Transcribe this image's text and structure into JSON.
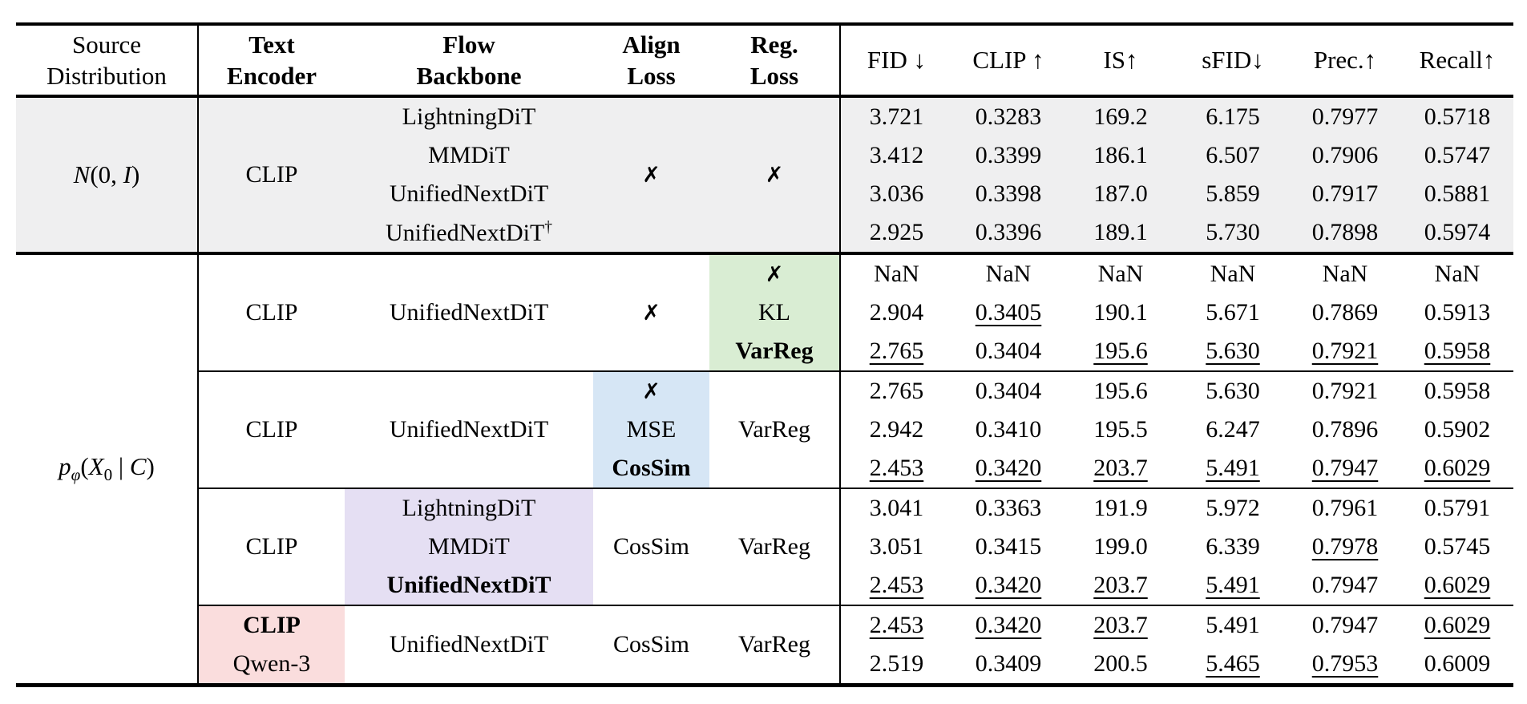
{
  "colors": {
    "section1_bg": "#efeff0",
    "green": "#d9edd3",
    "blue": "#d6e6f5",
    "purple": "#e5dff3",
    "pink": "#fadddd",
    "rule": "#000000"
  },
  "header": {
    "config_columns": [
      {
        "lines": [
          "Source",
          "Distribution"
        ],
        "bold": false
      },
      {
        "lines": [
          "Text",
          "Encoder"
        ],
        "bold": true
      },
      {
        "lines": [
          "Flow",
          "Backbone"
        ],
        "bold": true
      },
      {
        "lines": [
          "Align",
          "Loss"
        ],
        "bold": true
      },
      {
        "lines": [
          "Reg.",
          "Loss"
        ],
        "bold": true
      }
    ],
    "metric_columns": [
      "FID ↓",
      "CLIP ↑",
      "IS↑",
      "sFID↓",
      "Prec.↑",
      "Recall↑"
    ]
  },
  "sections": [
    {
      "name": "gaussian-prior",
      "bg": "section1_bg",
      "source_parts": [
        {
          "t": "N",
          "i": 1
        },
        {
          "t": "(0, "
        },
        {
          "t": "I",
          "i": 1
        },
        {
          "t": ")"
        }
      ],
      "groups": [
        {
          "encoder": {
            "span": {
              "text": "CLIP"
            }
          },
          "backbone": {
            "rows": [
              {
                "text": "LightningDiT"
              },
              {
                "text": "MMDiT"
              },
              {
                "text": "UnifiedNextDiT"
              },
              {
                "text": "UnifiedNextDiT",
                "sup": "†"
              }
            ]
          },
          "align": {
            "span": {
              "text": "✗",
              "xmark": true
            }
          },
          "reg": {
            "span": {
              "text": "✗",
              "xmark": true
            }
          },
          "metrics": [
            [
              "3.721",
              "0.3283",
              "169.2",
              "6.175",
              "0.7977",
              "0.5718"
            ],
            [
              "3.412",
              "0.3399",
              "186.1",
              "6.507",
              "0.7906",
              "0.5747"
            ],
            [
              "3.036",
              "0.3398",
              "187.0",
              "5.859",
              "0.7917",
              "0.5881"
            ],
            [
              "2.925",
              "0.3396",
              "189.1",
              "5.730",
              "0.7898",
              "0.5974"
            ]
          ]
        }
      ]
    },
    {
      "name": "learned-prior",
      "bg": null,
      "source_parts": [
        {
          "t": "p",
          "i": 1
        },
        {
          "t": "φ",
          "i": 1,
          "sub": 1
        },
        {
          "t": "("
        },
        {
          "t": "X",
          "i": 1
        },
        {
          "t": "0",
          "sub": 1
        },
        {
          "t": " | "
        },
        {
          "t": "C",
          "i": 1
        },
        {
          "t": ")"
        }
      ],
      "groups": [
        {
          "encoder": {
            "span": {
              "text": "CLIP"
            }
          },
          "backbone": {
            "span": {
              "text": "UnifiedNextDiT"
            }
          },
          "align": {
            "span": {
              "text": "✗",
              "xmark": true
            }
          },
          "reg": {
            "hl": "green",
            "rows": [
              {
                "text": "✗",
                "xmark": true
              },
              {
                "text": "KL"
              },
              {
                "text": "VarReg",
                "bold": true
              }
            ]
          },
          "metrics": [
            [
              "NaN",
              "NaN",
              "NaN",
              "NaN",
              "NaN",
              "NaN"
            ],
            [
              "2.904",
              {
                "v": "0.3405",
                "u": 1
              },
              "190.1",
              "5.671",
              "0.7869",
              "0.5913"
            ],
            [
              {
                "v": "2.765",
                "u": 1
              },
              "0.3404",
              {
                "v": "195.6",
                "u": 1
              },
              {
                "v": "5.630",
                "u": 1
              },
              {
                "v": "0.7921",
                "u": 1
              },
              {
                "v": "0.5958",
                "u": 1
              }
            ]
          ]
        },
        {
          "encoder": {
            "span": {
              "text": "CLIP"
            }
          },
          "backbone": {
            "span": {
              "text": "UnifiedNextDiT"
            }
          },
          "align": {
            "hl": "blue",
            "rows": [
              {
                "text": "✗",
                "xmark": true
              },
              {
                "text": "MSE"
              },
              {
                "text": "CosSim",
                "bold": true
              }
            ]
          },
          "reg": {
            "span": {
              "text": "VarReg"
            }
          },
          "metrics": [
            [
              "2.765",
              "0.3404",
              "195.6",
              "5.630",
              "0.7921",
              "0.5958"
            ],
            [
              "2.942",
              "0.3410",
              "195.5",
              "6.247",
              "0.7896",
              "0.5902"
            ],
            [
              {
                "v": "2.453",
                "u": 1
              },
              {
                "v": "0.3420",
                "u": 1
              },
              {
                "v": "203.7",
                "u": 1
              },
              {
                "v": "5.491",
                "u": 1
              },
              {
                "v": "0.7947",
                "u": 1
              },
              {
                "v": "0.6029",
                "u": 1
              }
            ]
          ]
        },
        {
          "encoder": {
            "span": {
              "text": "CLIP"
            }
          },
          "backbone": {
            "hl": "purple",
            "rows": [
              {
                "text": "LightningDiT"
              },
              {
                "text": "MMDiT"
              },
              {
                "text": "UnifiedNextDiT",
                "bold": true
              }
            ]
          },
          "align": {
            "span": {
              "text": "CosSim"
            }
          },
          "reg": {
            "span": {
              "text": "VarReg"
            }
          },
          "metrics": [
            [
              "3.041",
              "0.3363",
              "191.9",
              "5.972",
              "0.7961",
              "0.5791"
            ],
            [
              "3.051",
              "0.3415",
              "199.0",
              "6.339",
              {
                "v": "0.7978",
                "u": 1
              },
              "0.5745"
            ],
            [
              {
                "v": "2.453",
                "u": 1
              },
              {
                "v": "0.3420",
                "u": 1
              },
              {
                "v": "203.7",
                "u": 1
              },
              {
                "v": "5.491",
                "u": 1
              },
              "0.7947",
              {
                "v": "0.6029",
                "u": 1
              }
            ]
          ]
        },
        {
          "encoder": {
            "hl": "pink",
            "rows": [
              {
                "text": "CLIP",
                "bold": true
              },
              {
                "text": "Qwen-3"
              }
            ]
          },
          "backbone": {
            "span": {
              "text": "UnifiedNextDiT"
            }
          },
          "align": {
            "span": {
              "text": "CosSim"
            }
          },
          "reg": {
            "span": {
              "text": "VarReg"
            }
          },
          "metrics": [
            [
              {
                "v": "2.453",
                "u": 1
              },
              {
                "v": "0.3420",
                "u": 1
              },
              {
                "v": "203.7",
                "u": 1
              },
              "5.491",
              "0.7947",
              {
                "v": "0.6029",
                "u": 1
              }
            ],
            [
              "2.519",
              "0.3409",
              "200.5",
              {
                "v": "5.465",
                "u": 1
              },
              {
                "v": "0.7953",
                "u": 1
              },
              "0.6009"
            ]
          ]
        }
      ]
    }
  ]
}
